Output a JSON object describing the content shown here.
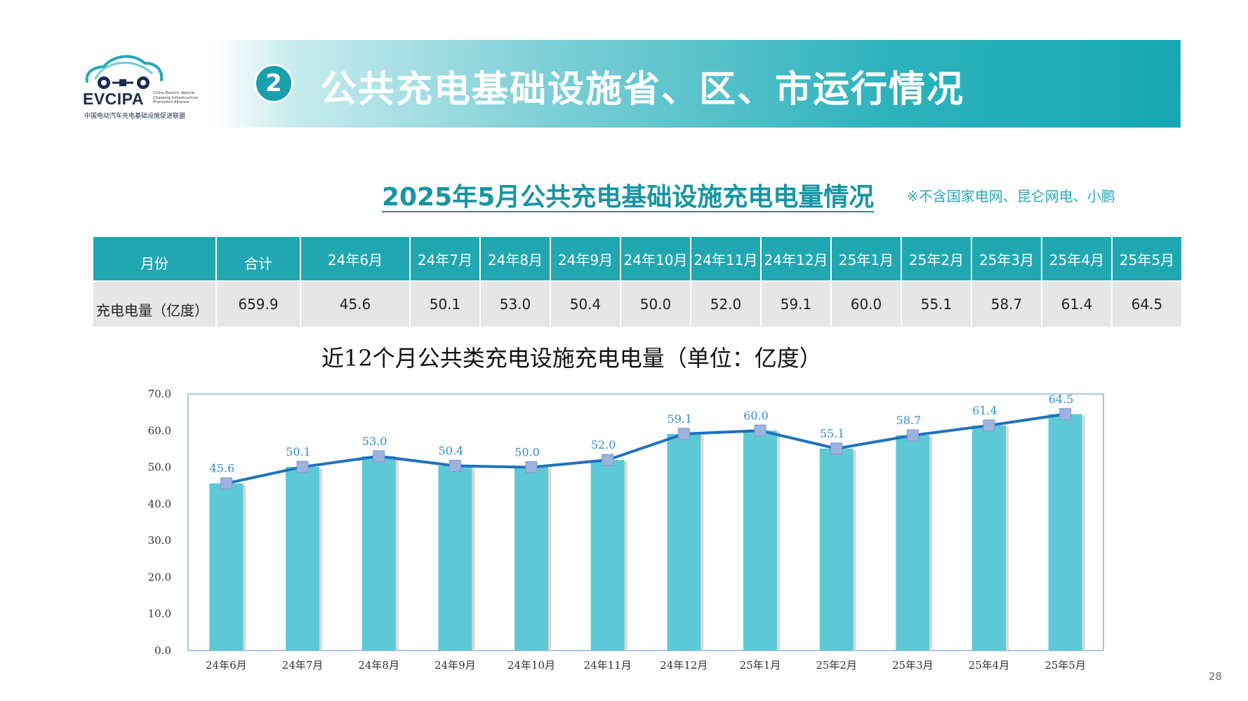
{
  "logo": {
    "name": "EVCIPA",
    "side_text": [
      "China Electric Vehicle",
      "Charging Infrastructure",
      "Promotion Alliance"
    ],
    "subtext": "中国电动汽车充电基础设施促进联盟"
  },
  "banner": {
    "number": "2",
    "title": "公共充电基础设施省、区、市运行情况"
  },
  "subtitle": "2025年5月公共充电基础设施充电电量情况",
  "note": "※不含国家电网、昆仑网电、小鹏",
  "table": {
    "headers": [
      "月份",
      "合计",
      "24年6月",
      "24年7月",
      "24年8月",
      "24年9月",
      "24年10月",
      "24年11月",
      "24年12月",
      "25年1月",
      "25年2月",
      "25年3月",
      "25年4月",
      "25年5月"
    ],
    "row": [
      "充电电量（亿度）",
      "659.9",
      "45.6",
      "50.1",
      "53.0",
      "50.4",
      "50.0",
      "52.0",
      "59.1",
      "60.0",
      "55.1",
      "58.7",
      "61.4",
      "64.5"
    ]
  },
  "chart_title": "近12个月公共类充电设施充电电量（单位：亿度）",
  "chart_data": {
    "type": "bar",
    "categories": [
      "24年6月",
      "24年7月",
      "24年8月",
      "24年9月",
      "24年10月",
      "24年11月",
      "24年12月",
      "25年1月",
      "25年2月",
      "25年3月",
      "25年4月",
      "25年5月"
    ],
    "series": [
      {
        "type": "bar",
        "values": [
          45.6,
          50.1,
          53.0,
          50.4,
          50.0,
          52.0,
          59.1,
          60.0,
          55.1,
          58.7,
          61.4,
          64.5
        ]
      },
      {
        "type": "line",
        "values": [
          45.6,
          50.1,
          53.0,
          50.4,
          50.0,
          52.0,
          59.1,
          60.0,
          55.1,
          58.7,
          61.4,
          64.5
        ]
      }
    ],
    "data_labels": [
      "45.6",
      "50.1",
      "53.0",
      "50.4",
      "50.0",
      "52.0",
      "59.1",
      "60.0",
      "55.1",
      "58.7",
      "61.4",
      "64.5"
    ],
    "yticks": [
      "0.0",
      "10.0",
      "20.0",
      "30.0",
      "40.0",
      "50.0",
      "60.0",
      "70.0"
    ],
    "ylim": [
      0,
      70
    ],
    "grid": false,
    "colors": {
      "bar": "#5ec9d6",
      "line": "#1f72bd",
      "marker": "#9db3e0",
      "label": "#2f8fc8",
      "frame": "#8fb3dd"
    }
  },
  "page_number": "28"
}
